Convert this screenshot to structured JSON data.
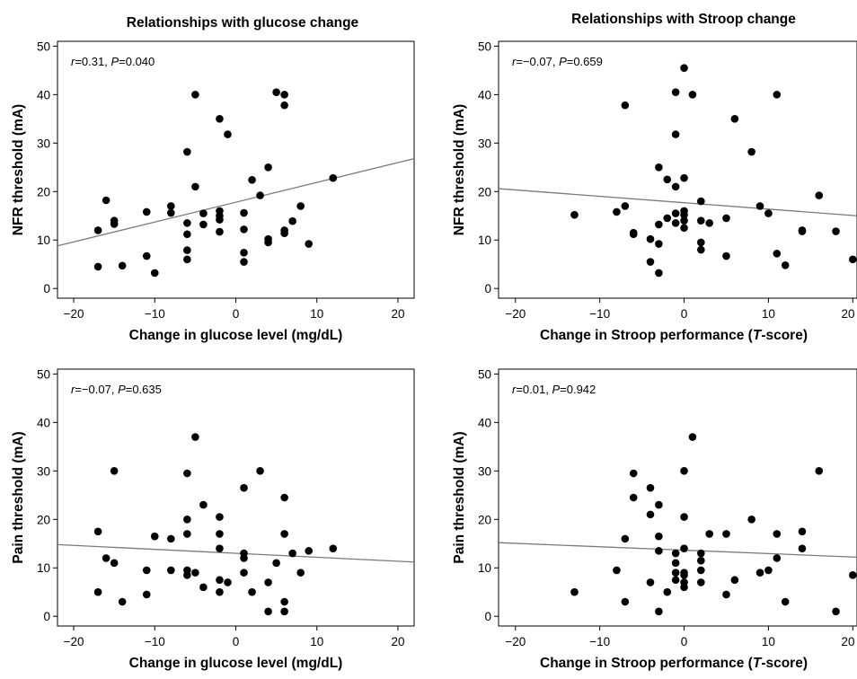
{
  "column_titles": [
    "Relationships with glucose change",
    "Relationships with Stroop change"
  ],
  "chart_data": [
    {
      "type": "scatter",
      "title": "Relationships with glucose change",
      "xlabel": "Change in glucose level (mg/dL)",
      "ylabel": "NFR threshold (mA)",
      "annotation": {
        "r_label": "r",
        "r_value": "=0.31, ",
        "p_label": "P",
        "p_value": "=0.040"
      },
      "xlim": [
        -22,
        22
      ],
      "ylim": [
        -2,
        51
      ],
      "xticks": [
        -20,
        -10,
        0,
        10,
        20
      ],
      "xtick_labels": [
        "−20",
        "−10",
        "0",
        "10",
        "20"
      ],
      "yticks": [
        0,
        10,
        20,
        30,
        40,
        50
      ],
      "ytick_labels": [
        "0",
        "10",
        "20",
        "30",
        "40",
        "50"
      ],
      "fit_line": {
        "x": [
          -22,
          22
        ],
        "y": [
          8.8,
          26.8
        ]
      },
      "points": [
        [
          -17,
          12
        ],
        [
          -17,
          4.5
        ],
        [
          -16,
          18.2
        ],
        [
          -15,
          14
        ],
        [
          -15,
          13.3
        ],
        [
          -14,
          4.7
        ],
        [
          -11,
          15.8
        ],
        [
          -11,
          6.7
        ],
        [
          -10,
          3.2
        ],
        [
          -8,
          17
        ],
        [
          -8,
          15.6
        ],
        [
          -6,
          28.2
        ],
        [
          -6,
          13.5
        ],
        [
          -6,
          11.2
        ],
        [
          -6,
          7.9
        ],
        [
          -6,
          6
        ],
        [
          -5,
          40
        ],
        [
          -5,
          21
        ],
        [
          -4,
          15.5
        ],
        [
          -4,
          13.2
        ],
        [
          -2,
          35
        ],
        [
          -2,
          16
        ],
        [
          -2,
          15
        ],
        [
          -2,
          14.2
        ],
        [
          -2,
          11.7
        ],
        [
          -1,
          31.8
        ],
        [
          1,
          15.6
        ],
        [
          1,
          12.2
        ],
        [
          1,
          7.4
        ],
        [
          1,
          5.5
        ],
        [
          2,
          22.4
        ],
        [
          3,
          19.2
        ],
        [
          4,
          25
        ],
        [
          4,
          10.2
        ],
        [
          4,
          9.5
        ],
        [
          5,
          40.5
        ],
        [
          6,
          40
        ],
        [
          6,
          37.8
        ],
        [
          6,
          12
        ],
        [
          6,
          11.4
        ],
        [
          7,
          13.9
        ],
        [
          8,
          17
        ],
        [
          9,
          9.2
        ],
        [
          12,
          22.8
        ]
      ]
    },
    {
      "type": "scatter",
      "title": "Relationships with Stroop change",
      "xlabel_parts": [
        "Change in Stroop performance (",
        "T",
        "-score)"
      ],
      "ylabel": "NFR threshold (mA)",
      "annotation": {
        "r_label": "r",
        "r_value": "=−0.07, ",
        "p_label": "P",
        "p_value": "=0.659"
      },
      "xlim": [
        -22,
        20.5
      ],
      "ylim": [
        -2,
        51
      ],
      "xticks": [
        -20,
        -10,
        0,
        10,
        20
      ],
      "xtick_labels": [
        "−20",
        "−10",
        "0",
        "10",
        "20"
      ],
      "yticks": [
        0,
        10,
        20,
        30,
        40,
        50
      ],
      "ytick_labels": [
        "0",
        "10",
        "20",
        "30",
        "40",
        "50"
      ],
      "fit_line": {
        "x": [
          -22,
          20.5
        ],
        "y": [
          20.6,
          15
        ]
      },
      "points": [
        [
          -13,
          15.2
        ],
        [
          -8,
          15.8
        ],
        [
          -7,
          37.8
        ],
        [
          -7,
          17
        ],
        [
          -6,
          11.5
        ],
        [
          -6,
          11.2
        ],
        [
          -4,
          5.5
        ],
        [
          -4,
          10.2
        ],
        [
          -3,
          25
        ],
        [
          -3,
          9.2
        ],
        [
          -3,
          13.2
        ],
        [
          -3,
          3.2
        ],
        [
          -2,
          22.5
        ],
        [
          -2,
          14.5
        ],
        [
          -1,
          40.5
        ],
        [
          -1,
          31.8
        ],
        [
          -1,
          21
        ],
        [
          -1,
          15.5
        ],
        [
          -1,
          13.5
        ],
        [
          0,
          45.5
        ],
        [
          0,
          22.8
        ],
        [
          0,
          16
        ],
        [
          0,
          15.2
        ],
        [
          0,
          14
        ],
        [
          0,
          12.5
        ],
        [
          1,
          40
        ],
        [
          2,
          18
        ],
        [
          2,
          14
        ],
        [
          2,
          9.5
        ],
        [
          2,
          8
        ],
        [
          3,
          13.5
        ],
        [
          5,
          14.5
        ],
        [
          5,
          6.7
        ],
        [
          6,
          35
        ],
        [
          8,
          28.2
        ],
        [
          9,
          17
        ],
        [
          10,
          15.5
        ],
        [
          11,
          40
        ],
        [
          11,
          7.2
        ],
        [
          12,
          4.8
        ],
        [
          14,
          12
        ],
        [
          14,
          11.8
        ],
        [
          16,
          19.2
        ],
        [
          18,
          11.8
        ],
        [
          20,
          6
        ]
      ]
    },
    {
      "type": "scatter",
      "title": "",
      "xlabel": "Change in glucose level (mg/dL)",
      "ylabel": "Pain threshold (mA)",
      "annotation": {
        "r_label": "r",
        "r_value": "=−0.07, ",
        "p_label": "P",
        "p_value": "=0.635"
      },
      "xlim": [
        -22,
        22
      ],
      "ylim": [
        -2,
        51
      ],
      "xticks": [
        -20,
        -10,
        0,
        10,
        20
      ],
      "xtick_labels": [
        "−20",
        "−10",
        "0",
        "10",
        "20"
      ],
      "yticks": [
        0,
        10,
        20,
        30,
        40,
        50
      ],
      "ytick_labels": [
        "0",
        "10",
        "20",
        "30",
        "40",
        "50"
      ],
      "fit_line": {
        "x": [
          -22,
          22
        ],
        "y": [
          14.8,
          11.2
        ]
      },
      "points": [
        [
          -17,
          17.5
        ],
        [
          -17,
          5
        ],
        [
          -16,
          12
        ],
        [
          -15,
          30
        ],
        [
          -15,
          11
        ],
        [
          -14,
          3
        ],
        [
          -11,
          9.5
        ],
        [
          -11,
          4.5
        ],
        [
          -10,
          16.5
        ],
        [
          -8,
          16
        ],
        [
          -8,
          9.5
        ],
        [
          -6,
          29.5
        ],
        [
          -6,
          20
        ],
        [
          -6,
          17
        ],
        [
          -6,
          9.5
        ],
        [
          -6,
          8.5
        ],
        [
          -5,
          37
        ],
        [
          -5,
          9
        ],
        [
          -4,
          23
        ],
        [
          -4,
          6
        ],
        [
          -2,
          20.5
        ],
        [
          -2,
          17
        ],
        [
          -2,
          14
        ],
        [
          -2,
          7.5
        ],
        [
          -2,
          5
        ],
        [
          -1,
          7
        ],
        [
          1,
          26.5
        ],
        [
          1,
          13
        ],
        [
          1,
          12
        ],
        [
          1,
          9
        ],
        [
          2,
          5
        ],
        [
          3,
          30
        ],
        [
          4,
          7
        ],
        [
          4,
          1
        ],
        [
          5,
          11
        ],
        [
          6,
          24.5
        ],
        [
          6,
          17
        ],
        [
          6,
          3
        ],
        [
          6,
          1
        ],
        [
          7,
          13
        ],
        [
          8,
          9
        ],
        [
          9,
          13.5
        ],
        [
          12,
          14
        ]
      ]
    },
    {
      "type": "scatter",
      "title": "",
      "xlabel_parts": [
        "Change in Stroop performance (",
        "T",
        "-score)"
      ],
      "ylabel": "Pain threshold (mA)",
      "annotation": {
        "r_label": "r",
        "r_value": "=0.01, ",
        "p_label": "P",
        "p_value": "=0.942"
      },
      "xlim": [
        -22,
        20.5
      ],
      "ylim": [
        -2,
        51
      ],
      "xticks": [
        -20,
        -10,
        0,
        10,
        20
      ],
      "xtick_labels": [
        "−20",
        "−10",
        "0",
        "10",
        "20"
      ],
      "yticks": [
        0,
        10,
        20,
        30,
        40,
        50
      ],
      "ytick_labels": [
        "0",
        "10",
        "20",
        "30",
        "40",
        "50"
      ],
      "fit_line": {
        "x": [
          -22,
          20.5
        ],
        "y": [
          15.2,
          12.2
        ]
      },
      "points": [
        [
          -13,
          5
        ],
        [
          -8,
          9.5
        ],
        [
          -7,
          16
        ],
        [
          -7,
          3
        ],
        [
          -6,
          29.5
        ],
        [
          -6,
          24.5
        ],
        [
          -4,
          26.5
        ],
        [
          -4,
          21
        ],
        [
          -4,
          7
        ],
        [
          -3,
          23
        ],
        [
          -3,
          16.5
        ],
        [
          -3,
          13.5
        ],
        [
          -3,
          1
        ],
        [
          -2,
          5
        ],
        [
          -1,
          13
        ],
        [
          -1,
          11
        ],
        [
          -1,
          9
        ],
        [
          -1,
          7.5
        ],
        [
          0,
          30
        ],
        [
          0,
          20.5
        ],
        [
          0,
          14
        ],
        [
          0,
          9
        ],
        [
          0,
          8.5
        ],
        [
          0,
          7
        ],
        [
          0,
          6
        ],
        [
          1,
          37
        ],
        [
          2,
          13
        ],
        [
          2,
          11.5
        ],
        [
          2,
          9.5
        ],
        [
          2,
          7
        ],
        [
          3,
          17
        ],
        [
          5,
          17
        ],
        [
          5,
          4.5
        ],
        [
          6,
          7.5
        ],
        [
          8,
          20
        ],
        [
          9,
          9
        ],
        [
          10,
          9.5
        ],
        [
          11,
          17
        ],
        [
          11,
          12
        ],
        [
          12,
          3
        ],
        [
          14,
          17.5
        ],
        [
          14,
          14
        ],
        [
          16,
          30
        ],
        [
          18,
          1
        ],
        [
          20,
          8.5
        ]
      ]
    }
  ]
}
